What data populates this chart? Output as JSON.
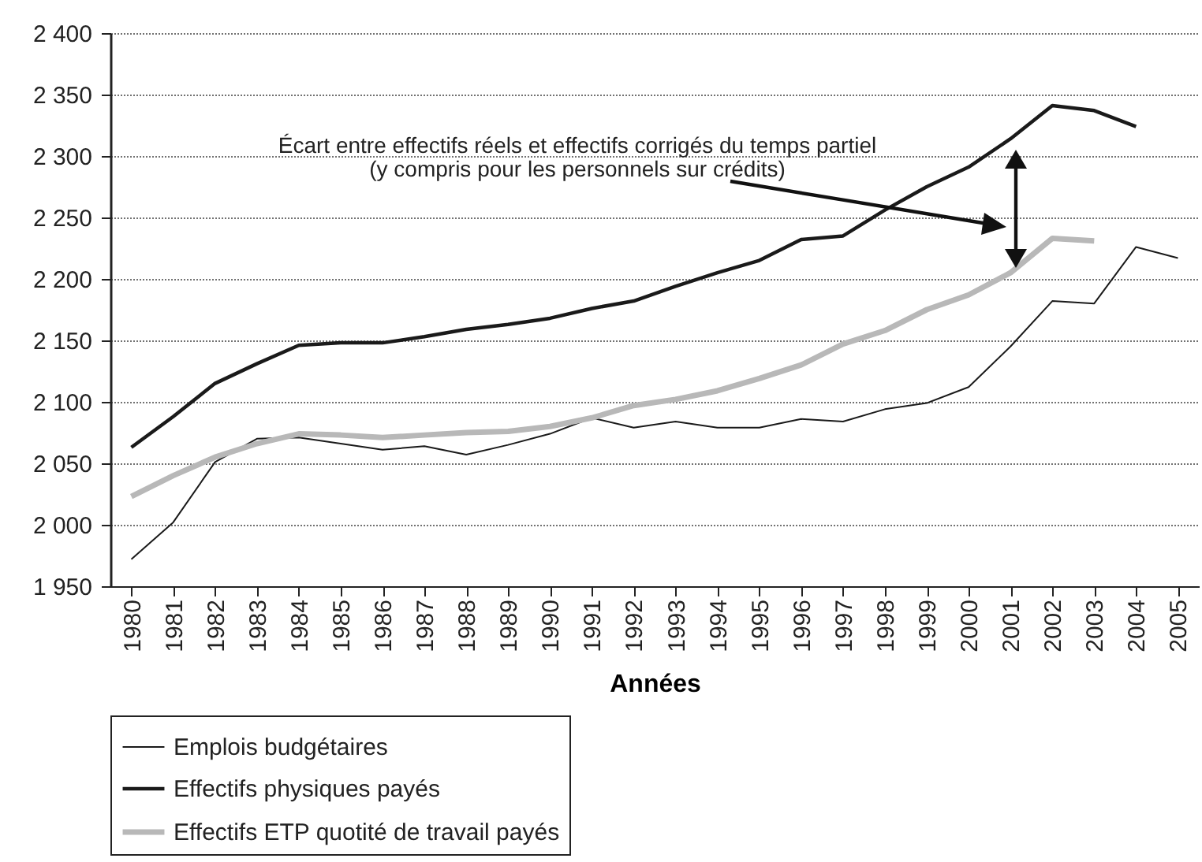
{
  "chart_data": {
    "type": "line",
    "xlabel": "Années",
    "categories": [
      "1980",
      "1981",
      "1982",
      "1983",
      "1984",
      "1985",
      "1986",
      "1987",
      "1988",
      "1989",
      "1990",
      "1991",
      "1992",
      "1993",
      "1994",
      "1995",
      "1996",
      "1997",
      "1998",
      "1999",
      "2000",
      "2001",
      "2002",
      "2003",
      "2004",
      "2005"
    ],
    "series": [
      {
        "name": "Emplois budgétaires",
        "color": "#1a1a1a",
        "values": [
          1972,
          2002,
          2051,
          2070,
          2071,
          2066,
          2061,
          2064,
          2057,
          2065,
          2074,
          2087,
          2079,
          2084,
          2079,
          2079,
          2086,
          2084,
          2094,
          2099,
          2112,
          2145,
          2182,
          2180,
          2226,
          2217
        ]
      },
      {
        "name": "Effectifs physiques payés",
        "color": "#1a1a1a",
        "values": [
          2063,
          2088,
          2115,
          2131,
          2146,
          2148,
          2148,
          2153,
          2159,
          2163,
          2168,
          2176,
          2182,
          2194,
          2205,
          2215,
          2232,
          2235,
          2256,
          2275,
          2291,
          2314,
          2341,
          2337,
          2324,
          null
        ]
      },
      {
        "name": "Effectifs ETP quotité de travail payés",
        "color": "#b8b8b8",
        "values": [
          2023,
          2040,
          2055,
          2066,
          2074,
          2073,
          2071,
          2073,
          2075,
          2076,
          2080,
          2087,
          2097,
          2102,
          2109,
          2119,
          2130,
          2147,
          2158,
          2175,
          2187,
          2205,
          2233,
          2231,
          null,
          null
        ]
      }
    ],
    "ylim": [
      1950,
      2400
    ],
    "yticks": [
      {
        "value": 1950,
        "label": "1 950"
      },
      {
        "value": 2000,
        "label": "2 000"
      },
      {
        "value": 2050,
        "label": "2 050"
      },
      {
        "value": 2100,
        "label": "2 100"
      },
      {
        "value": 2150,
        "label": "2 150"
      },
      {
        "value": 2200,
        "label": "2 200"
      },
      {
        "value": 2250,
        "label": "2 250"
      },
      {
        "value": 2300,
        "label": "2 300"
      },
      {
        "value": 2350,
        "label": "2 350"
      },
      {
        "value": 2400,
        "label": "2 400"
      }
    ],
    "grid": "y",
    "legend": "bottom",
    "marker": "none",
    "line_style": "solid",
    "annotations": [
      "Écart entre effectifs réels et effectifs corrigés du temps partiel\n(y compris pour les personnels sur crédits)"
    ]
  }
}
